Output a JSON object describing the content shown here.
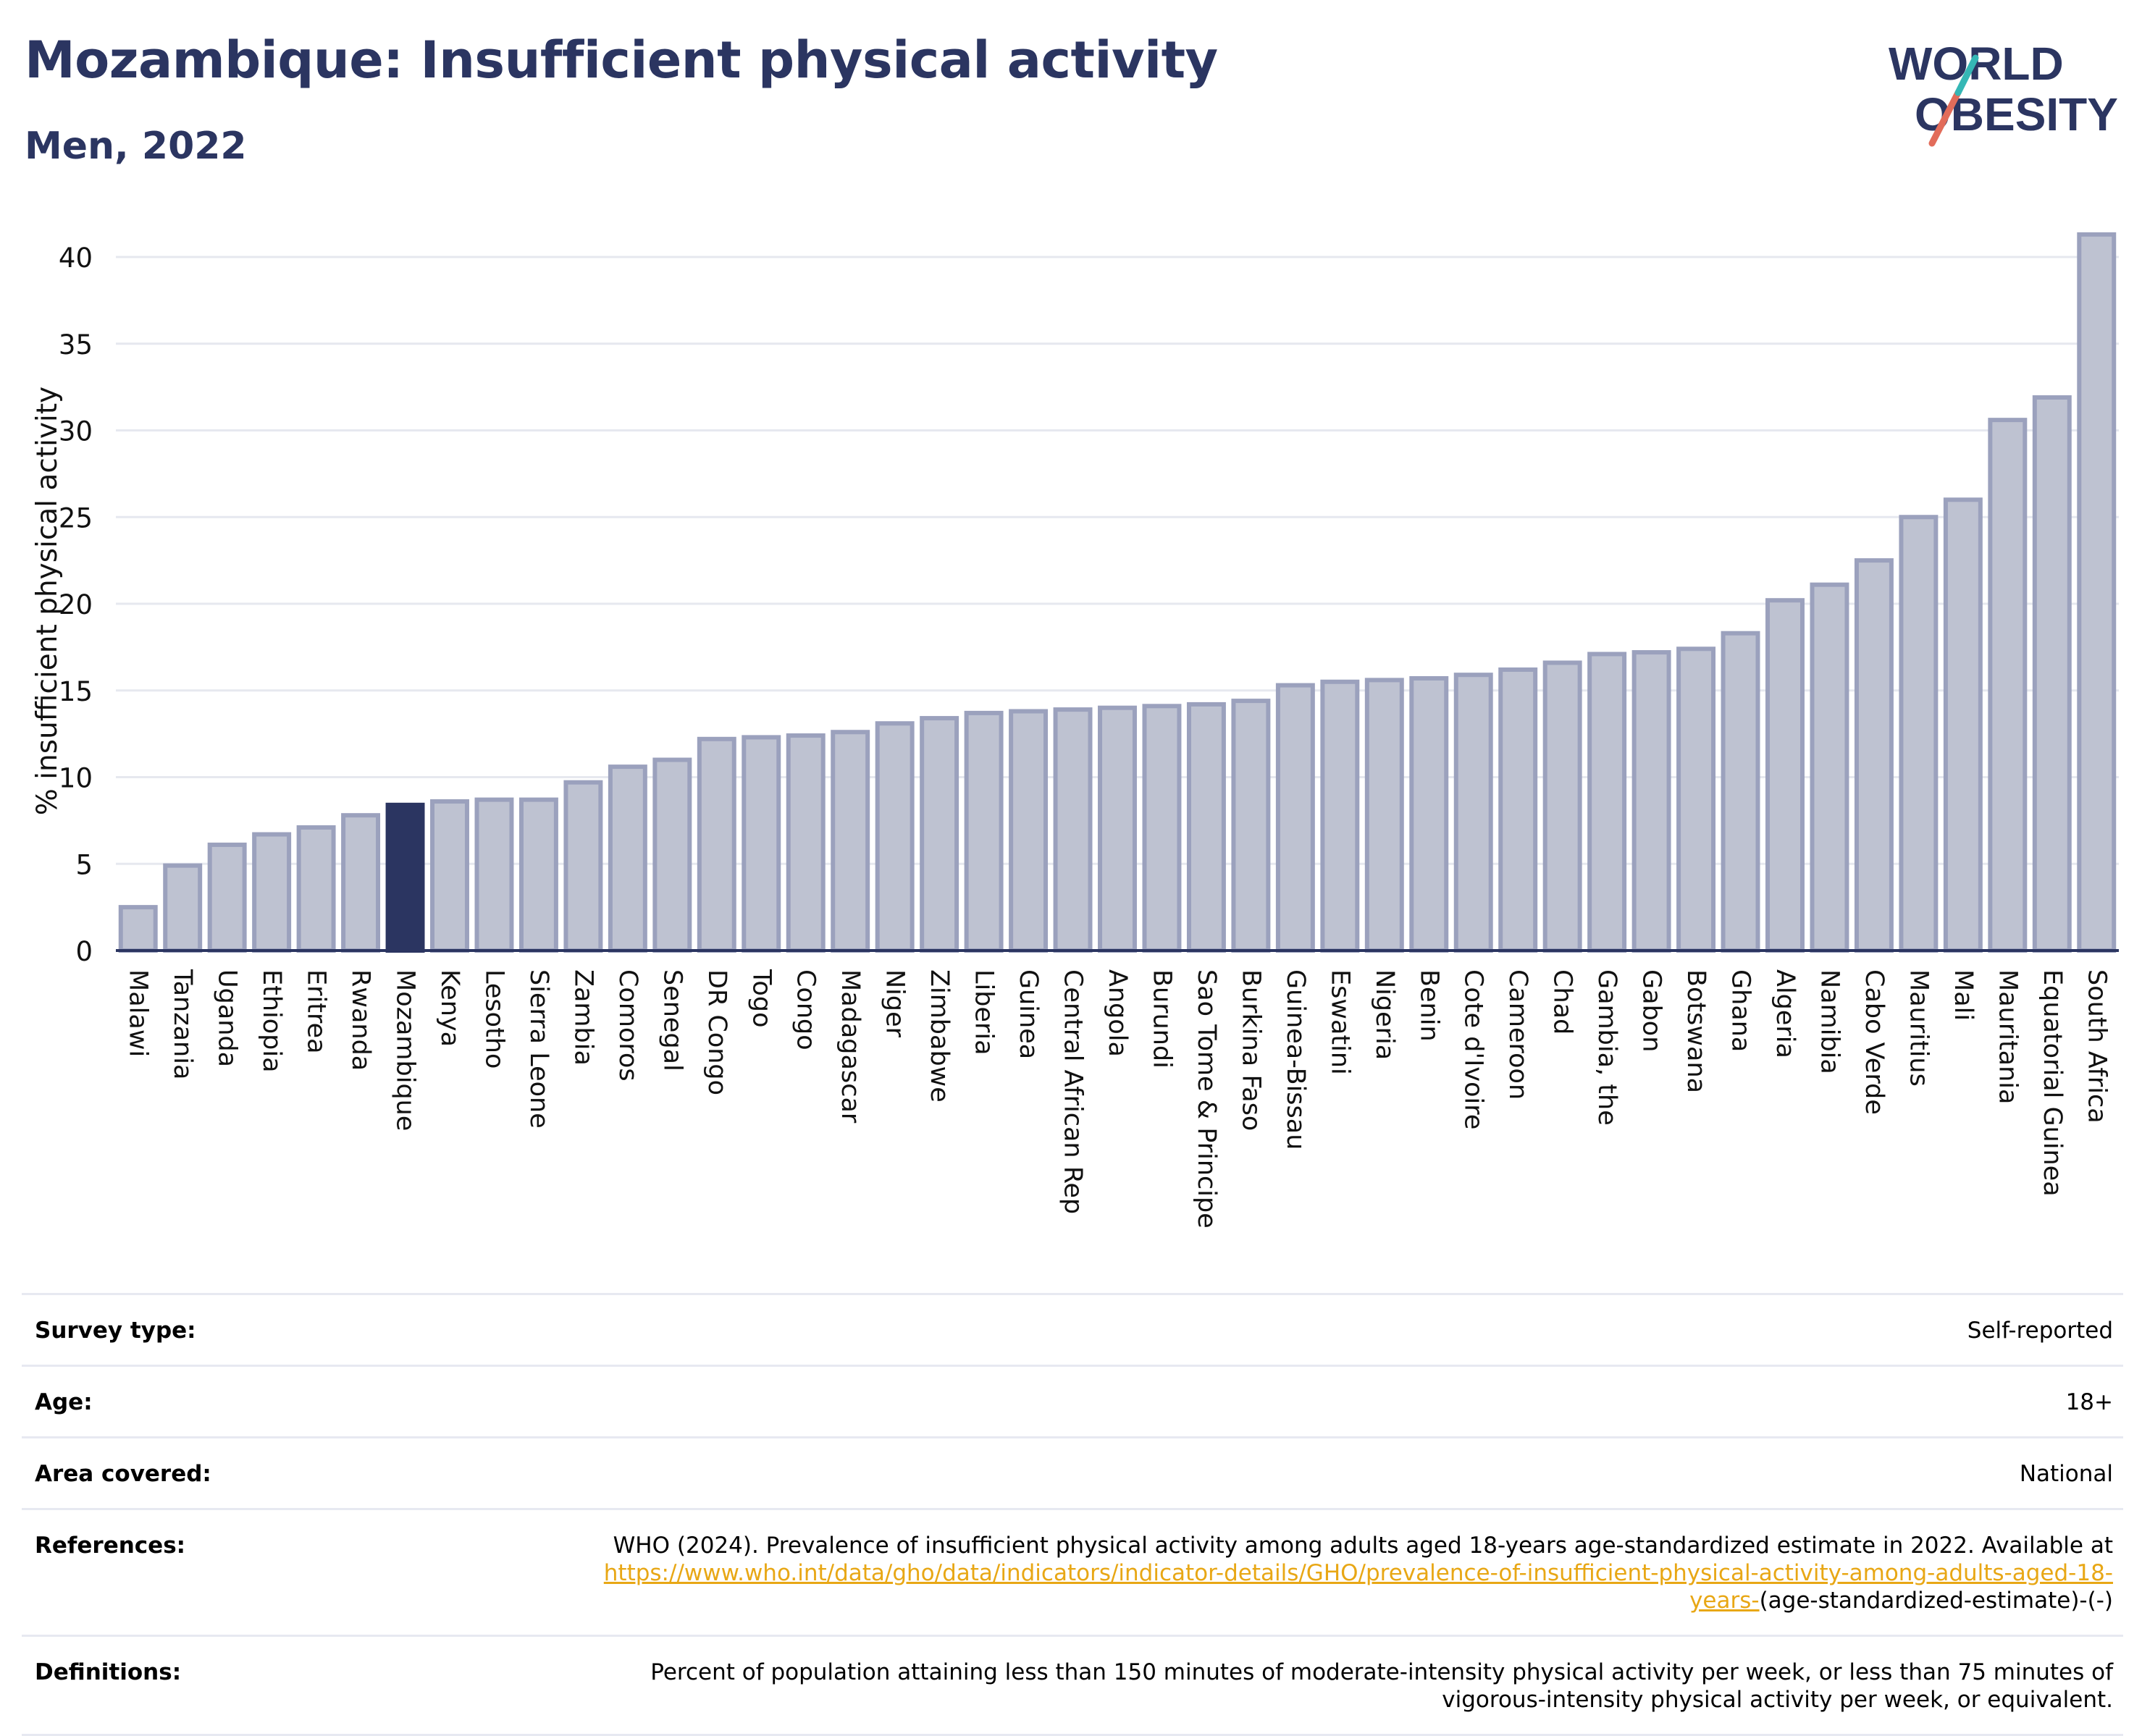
{
  "header": {
    "title": "Mozambique: Insufficient physical activity",
    "subtitle": "Men, 2022"
  },
  "logo": {
    "line1": "WORLD",
    "line2": "OBESITY",
    "icon": "slash-mark-icon"
  },
  "colors": {
    "highlight": "#2b3561",
    "bar_fill": "#bec2d1",
    "bar_stroke": "#9ba1bd",
    "grid": "#e6e8ef",
    "link": "#e8a715",
    "accent_teal": "#35b7b5",
    "accent_coral": "#e26c5a"
  },
  "chart_data": {
    "type": "bar",
    "ylabel": "% insufficient physical activity",
    "xlabel": "",
    "ylim": [
      0,
      42
    ],
    "yticks": [
      0,
      5,
      10,
      15,
      20,
      25,
      30,
      35,
      40
    ],
    "grid": true,
    "highlight": "Mozambique",
    "categories": [
      "Malawi",
      "Tanzania",
      "Uganda",
      "Ethiopia",
      "Eritrea",
      "Rwanda",
      "Mozambique",
      "Kenya",
      "Lesotho",
      "Sierra Leone",
      "Zambia",
      "Comoros",
      "Senegal",
      "DR Congo",
      "Togo",
      "Congo",
      "Madagascar",
      "Niger",
      "Zimbabwe",
      "Liberia",
      "Guinea",
      "Central African Rep",
      "Angola",
      "Burundi",
      "Sao Tome & Principe",
      "Burkina Faso",
      "Guinea-Bissau",
      "Eswatini",
      "Nigeria",
      "Benin",
      "Cote d'Ivoire",
      "Cameroon",
      "Chad",
      "Gambia, the",
      "Gabon",
      "Botswana",
      "Ghana",
      "Algeria",
      "Namibia",
      "Cabo Verde",
      "Mauritius",
      "Mali",
      "Mauritania",
      "Equatorial Guinea",
      "South Africa"
    ],
    "values": [
      2.5,
      4.9,
      6.1,
      6.7,
      7.1,
      7.8,
      8.4,
      8.6,
      8.7,
      8.7,
      9.7,
      10.6,
      11.0,
      12.2,
      12.3,
      12.4,
      12.6,
      13.1,
      13.4,
      13.7,
      13.8,
      13.9,
      14.0,
      14.1,
      14.2,
      14.4,
      15.3,
      15.5,
      15.6,
      15.7,
      15.9,
      16.2,
      16.6,
      17.1,
      17.2,
      17.4,
      18.3,
      20.2,
      21.1,
      22.5,
      25.0,
      26.0,
      30.6,
      31.9,
      41.3
    ]
  },
  "info": {
    "survey_type": {
      "label": "Survey type:",
      "value": "Self-reported"
    },
    "age": {
      "label": "Age:",
      "value": "18+"
    },
    "area": {
      "label": "Area covered:",
      "value": "National"
    },
    "references": {
      "label": "References:",
      "text": "WHO (2024). Prevalence of insufficient physical activity among adults aged 18-years age-standardized estimate in 2022. Available at",
      "link": "https://www.who.int/data/gho/data/indicators/indicator-details/GHO/prevalence-of-insufficient-physical-activity-among-adults-aged-18-years-",
      "tail": "(age-standardized-estimate)-(-)"
    },
    "definitions": {
      "label": "Definitions:",
      "value": "Percent of population attaining less than 150 minutes of moderate-intensity physical activity per week, or less than 75 minutes of vigorous-intensity physical activity per week, or equivalent."
    }
  }
}
